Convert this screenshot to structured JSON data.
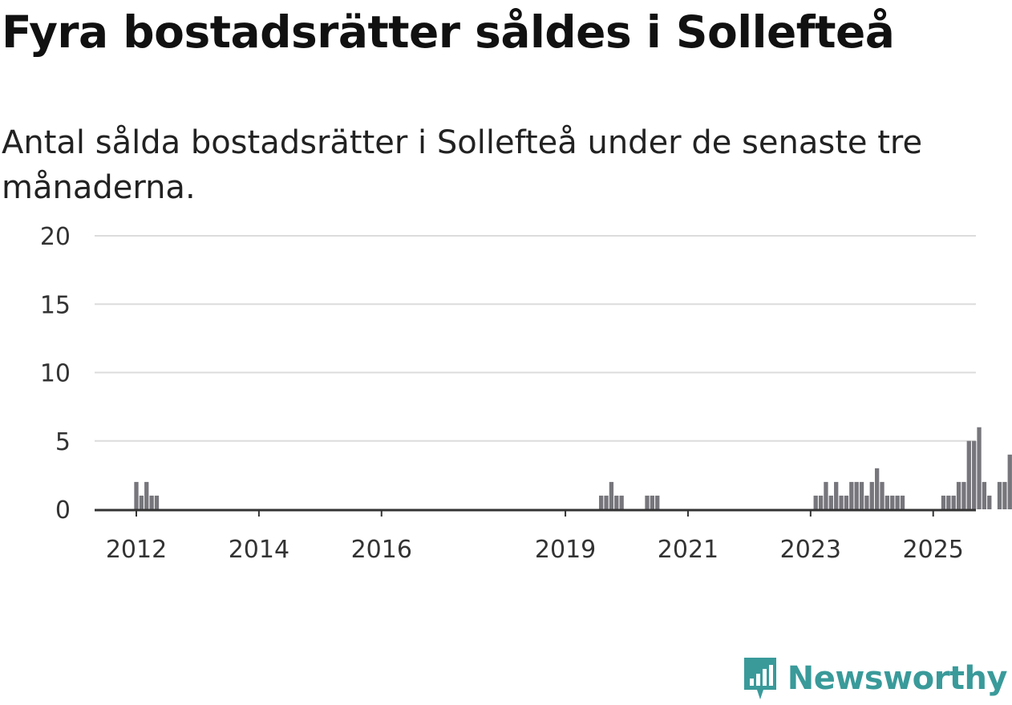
{
  "title": "Fyra bostadsrätter såldes i Sollefteå",
  "subtitle": "Antal sålda bostadsrätter i Sollefteå under de senaste tre månaderna.",
  "brand": "Newsworthy",
  "colors": {
    "bar": "#76767c",
    "highlight": "#1a9b9b",
    "grid": "#dcdcdc",
    "axis": "#333333",
    "brand": "#3a9a9a"
  },
  "chart_data": {
    "type": "bar",
    "x_type": "month",
    "start_month": "2011-10",
    "values": [
      0,
      0,
      0,
      2,
      1,
      2,
      1,
      1,
      0,
      0,
      0,
      0,
      0,
      0,
      0,
      0,
      0,
      0,
      0,
      0,
      0,
      0,
      0,
      0,
      0,
      0,
      0,
      0,
      0,
      0,
      0,
      0,
      0,
      0,
      0,
      0,
      0,
      0,
      0,
      0,
      0,
      0,
      0,
      0,
      0,
      0,
      0,
      0,
      0,
      0,
      0,
      0,
      0,
      0,
      0,
      0,
      0,
      0,
      0,
      0,
      0,
      0,
      0,
      0,
      0,
      0,
      0,
      0,
      0,
      0,
      0,
      0,
      0,
      0,
      0,
      0,
      0,
      0,
      0,
      0,
      0,
      0,
      0,
      0,
      0,
      0,
      0,
      0,
      0,
      0,
      0,
      0,
      0,
      0,
      1,
      1,
      2,
      1,
      1,
      0,
      0,
      0,
      0,
      1,
      1,
      1,
      0,
      0,
      0,
      0,
      0,
      0,
      0,
      0,
      0,
      0,
      0,
      0,
      0,
      0,
      0,
      0,
      0,
      0,
      0,
      0,
      0,
      0,
      0,
      0,
      0,
      0,
      0,
      0,
      0,
      0,
      1,
      1,
      2,
      1,
      2,
      1,
      1,
      2,
      2,
      2,
      1,
      2,
      3,
      2,
      1,
      1,
      1,
      1,
      0,
      0,
      0,
      0,
      0,
      0,
      0,
      1,
      1,
      1,
      2,
      2,
      5,
      5,
      6,
      2,
      1,
      0,
      2,
      2,
      4,
      3,
      2,
      4,
      3,
      5,
      4,
      4,
      2,
      1,
      1,
      5,
      6,
      6,
      5,
      8,
      8,
      6,
      3,
      2,
      7,
      8,
      8,
      4,
      5,
      8,
      8,
      6,
      5,
      6,
      11,
      10,
      9,
      5,
      4,
      4,
      11,
      14,
      16,
      15,
      14,
      14,
      14,
      14,
      12,
      14,
      10,
      10,
      7,
      9,
      6,
      9,
      12,
      16,
      15,
      12,
      12,
      12,
      13,
      16,
      13,
      10,
      0,
      4
    ],
    "highlight_last": true,
    "annotation": "4",
    "x_ticks": [
      "2012",
      "2014",
      "2016",
      "2019",
      "2021",
      "2023",
      "2025"
    ],
    "y_ticks": [
      "0",
      "5",
      "10",
      "15",
      "20"
    ],
    "ylim": [
      0,
      20
    ],
    "grid": true
  }
}
